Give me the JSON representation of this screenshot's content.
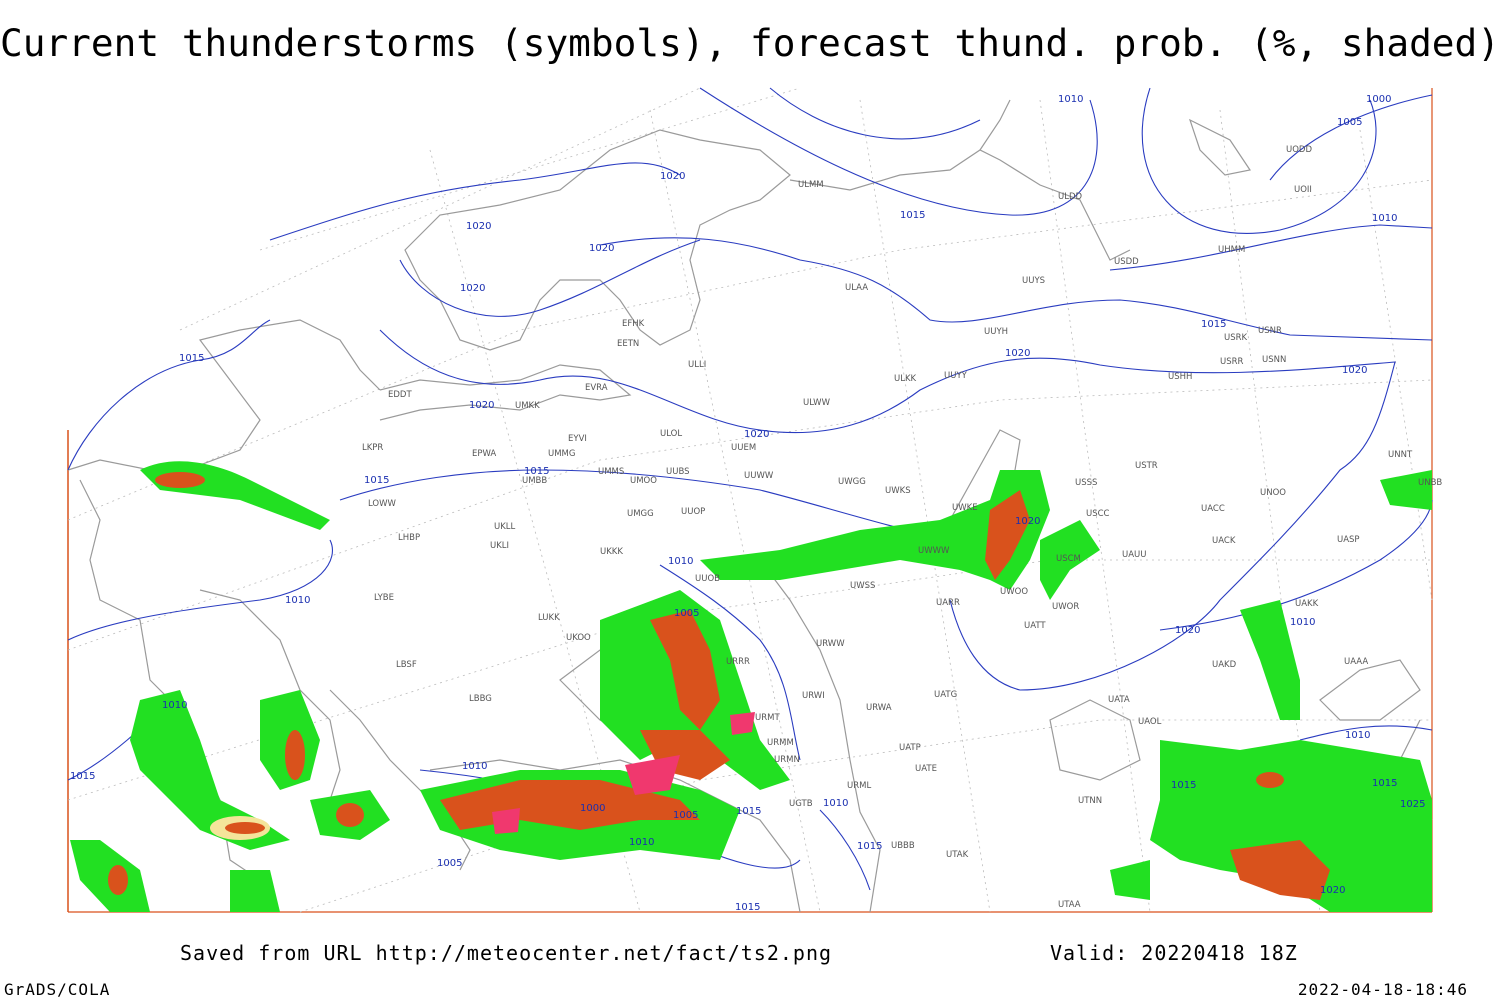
{
  "title": "Current thunderstorms (symbols), forecast thund. prob. (%, shaded)",
  "footer": {
    "source": "Saved from URL http://meteocenter.net/fact/ts2.png",
    "valid": "Valid: 20220418 18Z",
    "software": "GrADS/COLA",
    "timestamp": "2022-04-18-18:46"
  },
  "map": {
    "stations": [
      "ULMM",
      "ULDD",
      "UUYS",
      "ULAA",
      "UUYH",
      "EFHK",
      "EETN",
      "ULLI",
      "EVRA",
      "ULOL",
      "EDDT",
      "UMKK",
      "ULWW",
      "ULKK",
      "UUYY",
      "EPWA",
      "UMMG",
      "EYVI",
      "UUEM",
      "LKPR",
      "UMMS",
      "UUBS",
      "UMOO",
      "UMBB",
      "UUWW",
      "UWGG",
      "UWKS",
      "UWKE",
      "USSS",
      "USTR",
      "UNOO",
      "UNNT",
      "UNBB",
      "LOWW",
      "UKLL",
      "UKLI",
      "UMGG",
      "UUOP",
      "USCC",
      "UACC",
      "UACK",
      "UASP",
      "LHBP",
      "UKKK",
      "UWWW",
      "USCM",
      "UAUU",
      "LYBE",
      "UUOB",
      "UWSS",
      "UWOO",
      "UWOR",
      "UARR",
      "UAKK",
      "LUKK",
      "UKOO",
      "URWW",
      "UATT",
      "URRR",
      "LBSF",
      "UAKD",
      "UAAA",
      "URWI",
      "UATG",
      "LBBG",
      "URWA",
      "UATA",
      "UAOL",
      "URMT",
      "URMM",
      "UATP",
      "URMN",
      "UATE",
      "URML",
      "UTNN",
      "UGTB",
      "UBBB",
      "UTAK",
      "UTAA",
      "USDD",
      "USHH",
      "USRR",
      "USNN",
      "USRK",
      "USNR",
      "UHMM",
      "UODD",
      "UOII"
    ],
    "isobars": [
      1010,
      1000,
      1005,
      1020,
      1020,
      1020,
      1015,
      1010,
      1020,
      1015,
      1020,
      1020,
      1015,
      1020,
      1020,
      1015,
      1015,
      1020,
      1010,
      1010,
      1005,
      1020,
      1010,
      1010,
      1015,
      1010,
      1010,
      1015,
      1015,
      1025,
      1000,
      1005,
      1015,
      1010,
      1010,
      1015,
      1005,
      1020,
      1015
    ]
  }
}
